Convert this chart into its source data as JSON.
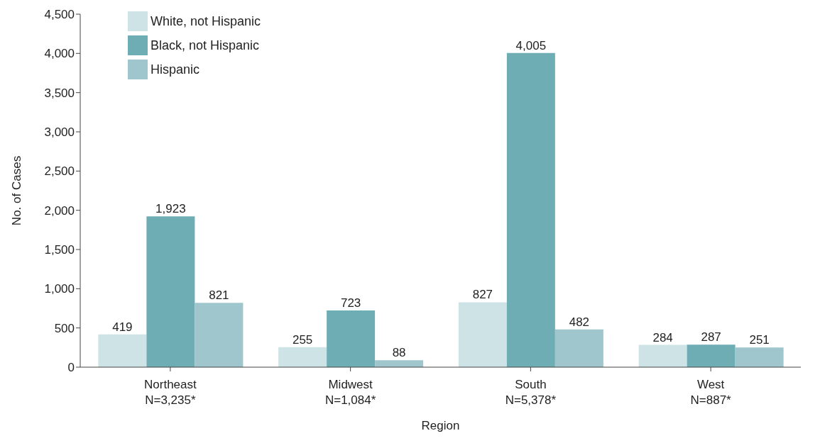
{
  "chart_data": {
    "type": "bar",
    "xlabel": "Region",
    "ylabel": "No. of Cases",
    "categories": [
      "Northeast\nN=3,235*",
      "Midwest\nN=1,084*",
      "South\nN=5,378*",
      "West\nN=887*"
    ],
    "series": [
      {
        "name": "White, not Hispanic",
        "color": "#cde3e6",
        "values": [
          419,
          255,
          827,
          284
        ],
        "value_labels": [
          "419",
          "255",
          "827",
          "284"
        ]
      },
      {
        "name": "Black, not Hispanic",
        "color": "#6fadb5",
        "values": [
          1923,
          723,
          4005,
          287
        ],
        "value_labels": [
          "1,923",
          "723",
          "4,005",
          "287"
        ]
      },
      {
        "name": "Hispanic",
        "color": "#9ec6cc",
        "values": [
          821,
          88,
          482,
          251
        ],
        "value_labels": [
          "821",
          "88",
          "482",
          "251"
        ]
      }
    ],
    "ylim": [
      0,
      4500
    ],
    "yticks": [
      0,
      500,
      {
        "value": 1000,
        "label": "1,000"
      },
      {
        "value": 1500,
        "label": "1,500"
      },
      {
        "value": 2000,
        "label": "2,000"
      },
      {
        "value": 2500,
        "label": "2,500"
      },
      {
        "value": 3000,
        "label": "3,000"
      },
      {
        "value": 3500,
        "label": "3,500"
      },
      {
        "value": 4000,
        "label": "4,000"
      },
      {
        "value": 4500,
        "label": "4,500"
      }
    ],
    "grid": false,
    "legend": "top left"
  }
}
